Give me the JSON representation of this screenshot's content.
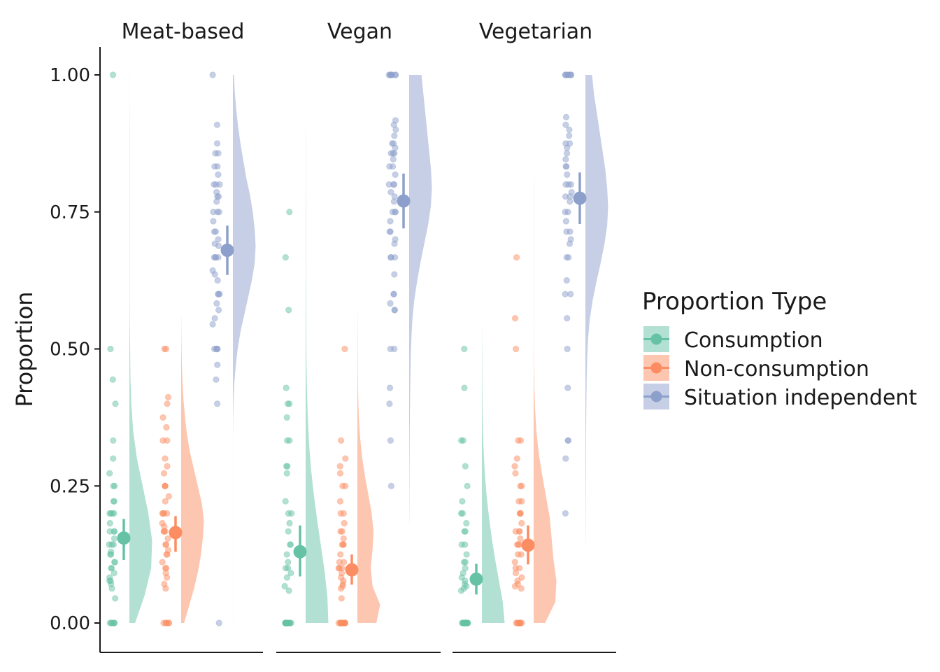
{
  "chart_data": {
    "type": "scatter",
    "subtype": "raincloud",
    "ylabel": "Proportion",
    "ylim": [
      0,
      1
    ],
    "yticks": [
      "0.00",
      "0.25",
      "0.50",
      "0.75",
      "1.00"
    ],
    "facets": [
      "Meat-based",
      "Vegan",
      "Vegetarian"
    ],
    "legend": {
      "title": "Proportion Type",
      "placement": "right",
      "items": [
        "Consumption",
        "Non-consumption",
        "Situation independent"
      ]
    },
    "colors": {
      "Consumption": "#66c2a5",
      "Non-consumption": "#fc8d62",
      "Situation independent": "#8da0cb"
    },
    "panels": [
      {
        "facet": "Meat-based",
        "series": [
          {
            "type": "Consumption",
            "mean": 0.155,
            "ci": [
              0.115,
              0.19
            ],
            "points": [
              1.0,
              0.5,
              0.444,
              0.4,
              0.333,
              0.3,
              0.273,
              0.25,
              0.25,
              0.222,
              0.222,
              0.2,
              0.2,
              0.2,
              0.2,
              0.182,
              0.167,
              0.167,
              0.167,
              0.154,
              0.143,
              0.143,
              0.143,
              0.13,
              0.125,
              0.125,
              0.111,
              0.111,
              0.1,
              0.1,
              0.091,
              0.083,
              0.077,
              0.077,
              0.071,
              0.063,
              0.045,
              0,
              0,
              0,
              0,
              0,
              0
            ],
            "density_range": [
              0,
              1.0
            ],
            "density": [
              0.6,
              1.6,
              2.3,
              2.4,
              2.0,
              1.4,
              0.8,
              0.4,
              0.2,
              0.1,
              0.08,
              0.04,
              0.02,
              0.02,
              0.02,
              0.02,
              0.02,
              0.02,
              0.02,
              0.01,
              0.01
            ]
          },
          {
            "type": "Non-consumption",
            "mean": 0.165,
            "ci": [
              0.13,
              0.195
            ],
            "points": [
              0.5,
              0.5,
              0.412,
              0.4,
              0.375,
              0.357,
              0.333,
              0.333,
              0.3,
              0.286,
              0.273,
              0.25,
              0.25,
              0.25,
              0.231,
              0.222,
              0.2,
              0.2,
              0.2,
              0.2,
              0.182,
              0.176,
              0.167,
              0.167,
              0.167,
              0.154,
              0.143,
              0.143,
              0.133,
              0.125,
              0.125,
              0.111,
              0.1,
              0.1,
              0.091,
              0.083,
              0.071,
              0.063,
              0,
              0,
              0,
              0,
              0
            ],
            "density_range": [
              0,
              0.56
            ],
            "density": [
              0.3,
              0.8,
              1.3,
              1.7,
              2.0,
              2.2,
              2.3,
              2.1,
              1.7,
              1.3,
              0.9,
              0.6,
              0.4,
              0.25,
              0.15,
              0.08,
              0.04,
              0.02,
              0.01
            ]
          },
          {
            "type": "Situation independent",
            "mean": 0.68,
            "ci": [
              0.635,
              0.725
            ],
            "points": [
              1.0,
              0.909,
              0.875,
              0.857,
              0.857,
              0.833,
              0.833,
              0.818,
              0.8,
              0.8,
              0.8,
              0.786,
              0.778,
              0.778,
              0.769,
              0.75,
              0.75,
              0.75,
              0.733,
              0.714,
              0.714,
              0.7,
              0.692,
              0.688,
              0.667,
              0.667,
              0.667,
              0.667,
              0.643,
              0.636,
              0.625,
              0.6,
              0.6,
              0.6,
              0.583,
              0.571,
              0.556,
              0.545,
              0.5,
              0.5,
              0.5,
              0.5,
              0.471,
              0.444,
              0.4,
              0
            ],
            "density_range": [
              0,
              1.0
            ],
            "density": [
              0.01,
              0.01,
              0.01,
              0.01,
              0.01,
              0.01,
              0.01,
              0.01,
              0.01,
              0.01,
              0.01,
              0.01,
              0.03,
              0.07,
              0.15,
              0.3,
              0.5,
              0.8,
              1.2,
              1.6,
              2.0,
              2.3,
              2.4,
              2.3,
              2.1,
              1.8,
              1.4,
              1.1,
              0.8,
              0.55,
              0.35,
              0.2,
              0.1
            ]
          }
        ]
      },
      {
        "facet": "Vegan",
        "series": [
          {
            "type": "Consumption",
            "mean": 0.13,
            "ci": [
              0.085,
              0.178
            ],
            "points": [
              0.75,
              0.667,
              0.571,
              0.429,
              0.4,
              0.4,
              0.375,
              0.333,
              0.333,
              0.286,
              0.286,
              0.273,
              0.222,
              0.2,
              0.2,
              0.182,
              0.167,
              0.143,
              0.143,
              0.125,
              0.111,
              0.1,
              0.1,
              0.091,
              0.083,
              0.067,
              0.059,
              0,
              0,
              0,
              0,
              0,
              0,
              0,
              0,
              0,
              0,
              0,
              0,
              0,
              0
            ],
            "density_range": [
              0,
              0.9
            ],
            "density": [
              2.4,
              2.3,
              2.0,
              1.6,
              1.2,
              0.85,
              0.55,
              0.35,
              0.22,
              0.14,
              0.09,
              0.06,
              0.05,
              0.04,
              0.03,
              0.03,
              0.03,
              0.02,
              0.02,
              0.01
            ]
          },
          {
            "type": "Non-consumption",
            "mean": 0.097,
            "ci": [
              0.07,
              0.125
            ],
            "points": [
              0.5,
              0.333,
              0.3,
              0.286,
              0.273,
              0.25,
              0.25,
              0.222,
              0.2,
              0.2,
              0.182,
              0.167,
              0.167,
              0.154,
              0.143,
              0.143,
              0.143,
              0.125,
              0.111,
              0.111,
              0.1,
              0.1,
              0.1,
              0.091,
              0.083,
              0.077,
              0.071,
              0.067,
              0.063,
              0.045,
              0,
              0,
              0,
              0,
              0,
              0,
              0,
              0,
              0,
              0,
              0,
              0,
              0
            ],
            "density_range": [
              0,
              0.57
            ],
            "density": [
              2.0,
              2.4,
              1.6,
              1.4,
              1.6,
              1.7,
              1.5,
              1.15,
              0.8,
              0.5,
              0.3,
              0.17,
              0.1,
              0.06,
              0.04,
              0.03,
              0.02,
              0.01
            ]
          },
          {
            "type": "Situation independent",
            "mean": 0.77,
            "ci": [
              0.72,
              0.82
            ],
            "points": [
              1.0,
              1.0,
              1.0,
              1.0,
              1.0,
              1.0,
              1.0,
              0.917,
              0.909,
              0.9,
              0.889,
              0.875,
              0.875,
              0.867,
              0.857,
              0.857,
              0.857,
              0.846,
              0.833,
              0.833,
              0.818,
              0.8,
              0.8,
              0.8,
              0.786,
              0.778,
              0.769,
              0.75,
              0.75,
              0.75,
              0.733,
              0.714,
              0.714,
              0.7,
              0.692,
              0.667,
              0.667,
              0.667,
              0.636,
              0.6,
              0.6,
              0.583,
              0.571,
              0.571,
              0.5,
              0.5,
              0.429,
              0.4,
              0.333,
              0.25
            ],
            "density_range": [
              0.18,
              1.0
            ],
            "density": [
              0.01,
              0.02,
              0.03,
              0.04,
              0.05,
              0.06,
              0.08,
              0.1,
              0.13,
              0.17,
              0.24,
              0.35,
              0.55,
              0.85,
              1.2,
              1.6,
              2.0,
              2.3,
              2.4,
              2.3,
              2.1,
              1.9,
              1.7,
              1.5,
              1.3
            ]
          }
        ]
      },
      {
        "facet": "Vegetarian",
        "series": [
          {
            "type": "Consumption",
            "mean": 0.08,
            "ci": [
              0.052,
              0.108
            ],
            "points": [
              0.5,
              0.429,
              0.333,
              0.333,
              0.286,
              0.25,
              0.222,
              0.2,
              0.2,
              0.182,
              0.167,
              0.167,
              0.143,
              0.143,
              0.125,
              0.111,
              0.111,
              0.1,
              0.091,
              0.083,
              0.077,
              0.071,
              0.067,
              0.063,
              0.059,
              0,
              0,
              0,
              0,
              0,
              0,
              0,
              0,
              0,
              0,
              0,
              0,
              0,
              0,
              0,
              0,
              0,
              0
            ],
            "density_range": [
              0,
              0.54
            ],
            "density": [
              2.4,
              2.2,
              1.8,
              1.4,
              1.05,
              0.75,
              0.5,
              0.32,
              0.2,
              0.12,
              0.07,
              0.05,
              0.03,
              0.02,
              0.01
            ]
          },
          {
            "type": "Non-consumption",
            "mean": 0.142,
            "ci": [
              0.107,
              0.178
            ],
            "points": [
              0.667,
              0.556,
              0.5,
              0.333,
              0.333,
              0.3,
              0.286,
              0.273,
              0.25,
              0.25,
              0.222,
              0.222,
              0.2,
              0.2,
              0.2,
              0.182,
              0.167,
              0.167,
              0.167,
              0.154,
              0.143,
              0.143,
              0.143,
              0.125,
              0.125,
              0.111,
              0.1,
              0.1,
              0.091,
              0.083,
              0.077,
              0.071,
              0.067,
              0.063,
              0,
              0,
              0,
              0,
              0,
              0,
              0,
              0
            ],
            "density_range": [
              0,
              0.81
            ],
            "density": [
              1.2,
              2.3,
              2.4,
              2.1,
              1.9,
              1.7,
              1.3,
              0.9,
              0.55,
              0.3,
              0.16,
              0.08,
              0.04,
              0.02,
              0.01,
              0.01,
              0.01,
              0.01,
              0.01,
              0.01,
              0.01,
              0.01
            ]
          },
          {
            "type": "Situation independent",
            "mean": 0.775,
            "ci": [
              0.728,
              0.822
            ],
            "points": [
              1.0,
              1.0,
              1.0,
              1.0,
              1.0,
              1.0,
              1.0,
              0.923,
              0.909,
              0.9,
              0.889,
              0.875,
              0.875,
              0.867,
              0.857,
              0.846,
              0.833,
              0.833,
              0.818,
              0.8,
              0.8,
              0.8,
              0.786,
              0.778,
              0.778,
              0.769,
              0.75,
              0.75,
              0.733,
              0.714,
              0.714,
              0.7,
              0.692,
              0.667,
              0.667,
              0.625,
              0.6,
              0.6,
              0.556,
              0.5,
              0.429,
              0.333,
              0.333,
              0.3,
              0.2
            ],
            "density_range": [
              0.14,
              1.0
            ],
            "density": [
              0.01,
              0.02,
              0.03,
              0.04,
              0.05,
              0.06,
              0.07,
              0.09,
              0.11,
              0.14,
              0.19,
              0.28,
              0.45,
              0.75,
              1.15,
              1.6,
              2.0,
              2.3,
              2.4,
              2.3,
              2.1,
              1.8,
              1.5,
              1.2,
              0.9,
              0.7
            ]
          }
        ]
      }
    ]
  }
}
